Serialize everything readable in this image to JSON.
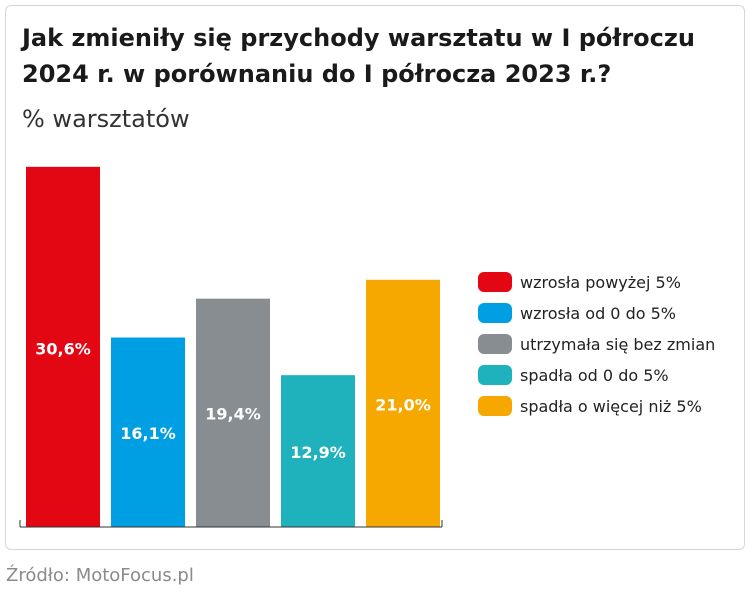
{
  "header": {
    "title_line1": "Jak zmieniły się przychody warsztatu w I półroczu",
    "title_line2": "2024 r. w porównaniu do I półrocza 2023 r.?",
    "subtitle": "% warsztatów"
  },
  "footer": {
    "source": "Źródło: MotoFocus.pl"
  },
  "chart_data": {
    "type": "bar",
    "title": "Jak zmieniły się przychody warsztatu w I półroczu 2024 r. w porównaniu do I półrocza 2023 r.?",
    "ylabel": "% warsztatów",
    "ylim": [
      0,
      32
    ],
    "grid": false,
    "legend_position": "right",
    "categories": [
      "wzrosła powyżej 5%",
      "wzrosła od 0 do 5%",
      "utrzymała się bez zmian",
      "spadła od 0 do 5%",
      "spadła o więcej niż 5%"
    ],
    "values": [
      30.6,
      16.1,
      19.4,
      12.9,
      21.0
    ],
    "value_labels": [
      "30,6%",
      "16,1%",
      "19,4%",
      "12,9%",
      "21,0%"
    ],
    "colors": [
      "#e30613",
      "#009fe3",
      "#878d91",
      "#1fb1bc",
      "#f6a800"
    ]
  }
}
